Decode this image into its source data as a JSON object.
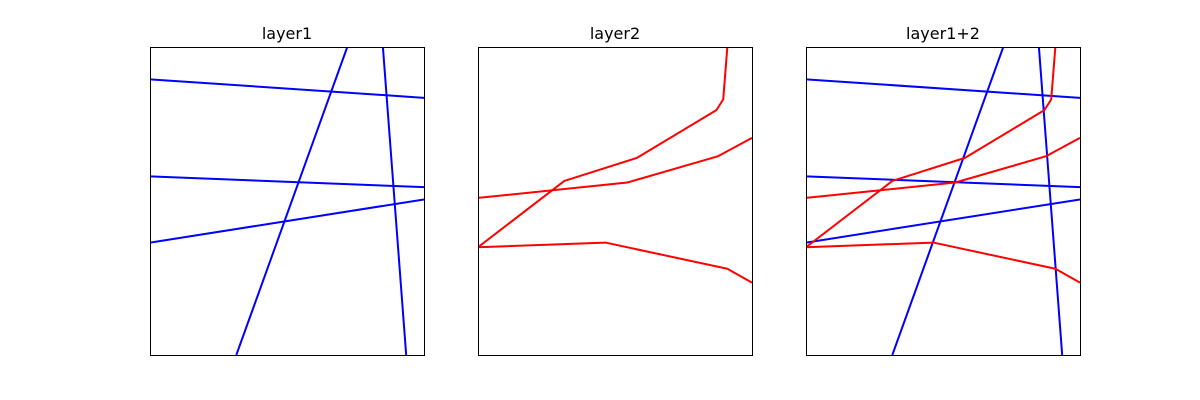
{
  "chart_data": [
    {
      "type": "line",
      "title": "layer1",
      "xlim": [
        0,
        1
      ],
      "ylim": [
        0,
        1
      ],
      "grid": false,
      "axis_ticks": false,
      "series": [
        {
          "color": "#0000ff",
          "x": [
            0.0,
            1.0
          ],
          "y": [
            0.895,
            0.835
          ]
        },
        {
          "color": "#0000ff",
          "x": [
            0.0,
            1.0
          ],
          "y": [
            0.58,
            0.545
          ]
        },
        {
          "color": "#0000ff",
          "x": [
            0.0,
            1.0
          ],
          "y": [
            0.365,
            0.505
          ]
        },
        {
          "color": "#0000ff",
          "x": [
            0.315,
            0.72
          ],
          "y": [
            0.0,
            1.0
          ]
        },
        {
          "color": "#0000ff",
          "x": [
            0.85,
            0.935
          ],
          "y": [
            1.0,
            0.0
          ]
        }
      ]
    },
    {
      "type": "line",
      "title": "layer2",
      "xlim": [
        0,
        1
      ],
      "ylim": [
        0,
        1
      ],
      "grid": false,
      "axis_ticks": false,
      "series": [
        {
          "color": "#ff0000",
          "x": [
            0.0,
            0.545,
            0.875,
            1.0
          ],
          "y": [
            0.51,
            0.56,
            0.645,
            0.705
          ]
        },
        {
          "color": "#ff0000",
          "x": [
            0.0,
            0.315,
            0.58,
            0.87,
            0.895,
            0.91
          ],
          "y": [
            0.35,
            0.565,
            0.64,
            0.795,
            0.83,
            1.0
          ]
        },
        {
          "color": "#ff0000",
          "x": [
            0.0,
            0.465,
            0.91,
            1.0
          ],
          "y": [
            0.35,
            0.365,
            0.28,
            0.235
          ]
        }
      ]
    },
    {
      "type": "line",
      "title": "layer1+2",
      "xlim": [
        0,
        1
      ],
      "ylim": [
        0,
        1
      ],
      "grid": false,
      "axis_ticks": false,
      "series": [
        {
          "color": "#0000ff",
          "x": [
            0.0,
            1.0
          ],
          "y": [
            0.895,
            0.835
          ]
        },
        {
          "color": "#0000ff",
          "x": [
            0.0,
            1.0
          ],
          "y": [
            0.58,
            0.545
          ]
        },
        {
          "color": "#0000ff",
          "x": [
            0.0,
            1.0
          ],
          "y": [
            0.365,
            0.505
          ]
        },
        {
          "color": "#0000ff",
          "x": [
            0.315,
            0.72
          ],
          "y": [
            0.0,
            1.0
          ]
        },
        {
          "color": "#0000ff",
          "x": [
            0.85,
            0.935
          ],
          "y": [
            1.0,
            0.0
          ]
        },
        {
          "color": "#ff0000",
          "x": [
            0.0,
            0.545,
            0.875,
            1.0
          ],
          "y": [
            0.51,
            0.56,
            0.645,
            0.705
          ]
        },
        {
          "color": "#ff0000",
          "x": [
            0.0,
            0.315,
            0.58,
            0.87,
            0.895,
            0.91
          ],
          "y": [
            0.35,
            0.565,
            0.64,
            0.795,
            0.83,
            1.0
          ]
        },
        {
          "color": "#ff0000",
          "x": [
            0.0,
            0.465,
            0.91,
            1.0
          ],
          "y": [
            0.35,
            0.365,
            0.28,
            0.235
          ]
        }
      ]
    }
  ]
}
